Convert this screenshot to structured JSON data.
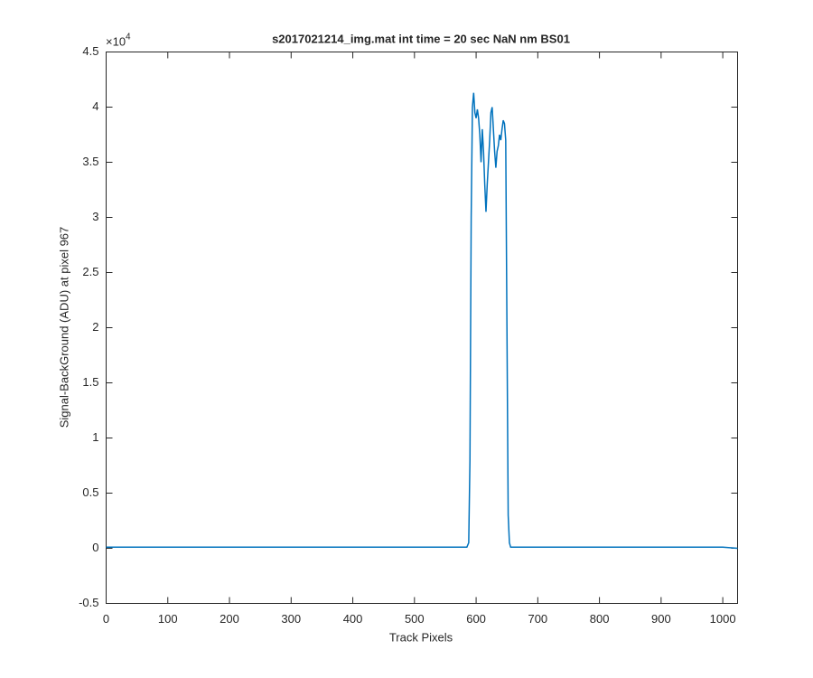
{
  "chart_data": {
    "type": "line",
    "title": "s2017021214_img.mat int time = 20 sec  NaN nm BS01",
    "xlabel": "Track Pixels",
    "ylabel": "Signal-BackGround (ADU) at pixel 967",
    "y_exponent": {
      "base": "×10",
      "power": "4"
    },
    "x": [
      0,
      50,
      100,
      150,
      200,
      250,
      300,
      350,
      400,
      450,
      500,
      550,
      585,
      588,
      590,
      592,
      594,
      596,
      598,
      600,
      602,
      604,
      606,
      608,
      610,
      612,
      614,
      616,
      618,
      620,
      622,
      624,
      626,
      628,
      630,
      632,
      634,
      636,
      638,
      640,
      642,
      644,
      646,
      648,
      650,
      652,
      654,
      656,
      700,
      750,
      800,
      850,
      900,
      950,
      1000,
      1024
    ],
    "series": [
      {
        "color": "#0072bd",
        "values": [
          0.01,
          0.01,
          0.01,
          0.01,
          0.01,
          0.01,
          0.01,
          0.01,
          0.01,
          0.01,
          0.01,
          0.01,
          0.01,
          0.05,
          0.8,
          3.0,
          4.0,
          4.13,
          3.95,
          3.9,
          3.98,
          3.9,
          3.75,
          3.5,
          3.8,
          3.6,
          3.3,
          3.05,
          3.3,
          3.5,
          3.7,
          3.95,
          4.0,
          3.8,
          3.6,
          3.45,
          3.6,
          3.65,
          3.75,
          3.7,
          3.8,
          3.88,
          3.85,
          3.7,
          2.0,
          0.3,
          0.05,
          0.01,
          0.01,
          0.01,
          0.01,
          0.01,
          0.01,
          0.01,
          0.01,
          0.0
        ]
      }
    ],
    "xlim": [
      0,
      1024
    ],
    "ylim": [
      -0.5,
      4.5
    ],
    "xticks": [
      0,
      100,
      200,
      300,
      400,
      500,
      600,
      700,
      800,
      900,
      1000
    ],
    "yticks": [
      -0.5,
      0,
      0.5,
      1,
      1.5,
      2,
      2.5,
      3,
      3.5,
      4,
      4.5
    ]
  }
}
